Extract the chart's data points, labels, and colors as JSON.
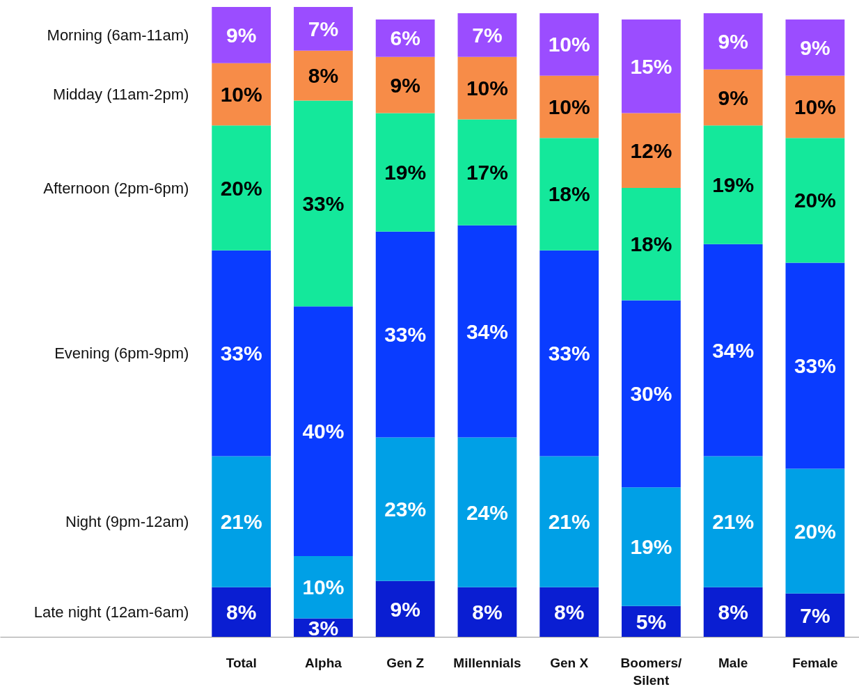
{
  "chart_data": {
    "type": "bar",
    "stacked": true,
    "tick_labels": "x",
    "grid": false,
    "categories": [
      "Total",
      "Alpha",
      "Gen Z",
      "Millennials",
      "Gen X",
      "Boomers/ Silent",
      "Male",
      "Female"
    ],
    "series": [
      {
        "name": "Late night (12am-6am)",
        "color": "#0a1ed2",
        "values": [
          8,
          3,
          9,
          8,
          8,
          5,
          8,
          7
        ],
        "value_labels": [
          "8%",
          "3%",
          "9%",
          "8%",
          "8%",
          "5%",
          "8%",
          "7%"
        ]
      },
      {
        "name": "Night (9pm-12am)",
        "color": "#00a0e6",
        "values": [
          21,
          10,
          23,
          24,
          21,
          19,
          21,
          20
        ],
        "value_labels": [
          "21%",
          "10%",
          "23%",
          "24%",
          "21%",
          "19%",
          "21%",
          "20%"
        ]
      },
      {
        "name": "Evening (6pm-9pm)",
        "color": "#0a3cff",
        "values": [
          33,
          40,
          33,
          34,
          33,
          30,
          34,
          33
        ],
        "value_labels": [
          "33%",
          "40%",
          "33%",
          "34%",
          "33%",
          "30%",
          "34%",
          "33%"
        ]
      },
      {
        "name": "Afternoon (2pm-6pm)",
        "color": "#14e89b",
        "values": [
          20,
          33,
          19,
          17,
          18,
          18,
          19,
          20
        ],
        "value_labels": [
          "20%",
          "33%",
          "19%",
          "17%",
          "18%",
          "18%",
          "19%",
          "20%"
        ]
      },
      {
        "name": "Midday (11am-2pm)",
        "color": "#f78c48",
        "values": [
          10,
          8,
          9,
          10,
          10,
          12,
          9,
          10
        ],
        "value_labels": [
          "10%",
          "8%",
          "9%",
          "10%",
          "10%",
          "12%",
          "9%",
          "10%"
        ]
      },
      {
        "name": "Morning (6am-11am)",
        "color": "#9b4dff",
        "values": [
          9,
          7,
          6,
          7,
          10,
          15,
          9,
          9
        ],
        "value_labels": [
          "9%",
          "7%",
          "6%",
          "7%",
          "10%",
          "15%",
          "9%",
          "9%"
        ]
      }
    ]
  }
}
